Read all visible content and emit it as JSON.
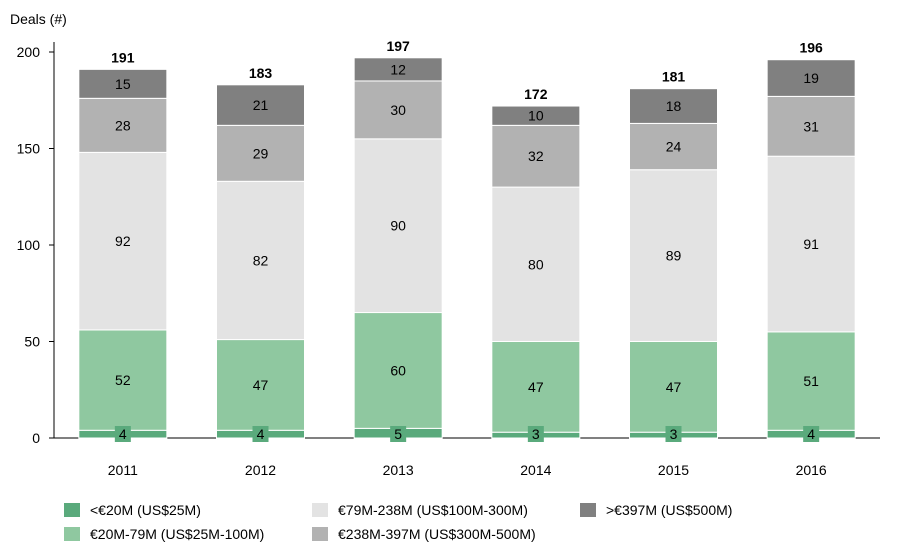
{
  "chart_data": {
    "type": "bar",
    "stacked": true,
    "ylabel": "Deals (#)",
    "xlabel": "",
    "ylim": [
      0,
      200
    ],
    "yticks": [
      0,
      50,
      100,
      150,
      200
    ],
    "grid": false,
    "legend_position": "bottom",
    "categories": [
      "2011",
      "2012",
      "2013",
      "2014",
      "2015",
      "2016"
    ],
    "totals": [
      191,
      183,
      197,
      172,
      181,
      196
    ],
    "series": [
      {
        "name": "<€20M (US$25M)",
        "color": "#5aaa7c",
        "values": [
          4,
          4,
          5,
          3,
          3,
          4
        ]
      },
      {
        "name": "€20M-79M (US$25M-100M)",
        "color": "#8fc8a0",
        "values": [
          52,
          47,
          60,
          47,
          47,
          51
        ]
      },
      {
        "name": "€79M-238M (US$100M-300M)",
        "color": "#e3e3e3",
        "values": [
          92,
          82,
          90,
          80,
          89,
          91
        ]
      },
      {
        "name": "€238M-397M (US$300M-500M)",
        "color": "#b2b2b2",
        "values": [
          28,
          29,
          30,
          32,
          24,
          31
        ]
      },
      {
        "name": ">€397M (US$500M)",
        "color": "#808080",
        "values": [
          15,
          21,
          12,
          10,
          18,
          19
        ]
      }
    ]
  }
}
